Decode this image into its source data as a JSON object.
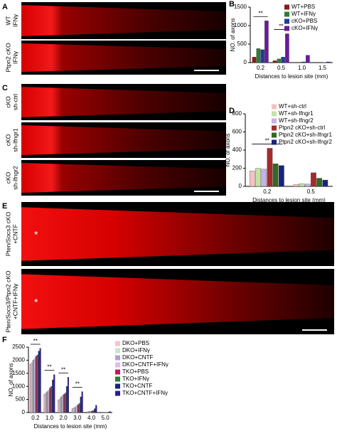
{
  "panels": {
    "A": {
      "label": "A",
      "rows": [
        {
          "genotype": "WT",
          "treatment": "IFNγ"
        },
        {
          "genotype": "Ptpn2 cKO",
          "treatment": "IFNγ"
        }
      ]
    },
    "C": {
      "label": "C",
      "rows": [
        {
          "genotype": "cKO",
          "treatment": "sh-ctrl"
        },
        {
          "genotype": "cKO",
          "treatment": "sh-Ifngr1"
        },
        {
          "genotype": "cKO",
          "treatment": "sh-Ifngr2"
        }
      ]
    },
    "E": {
      "label": "E",
      "marker": "*",
      "rows": [
        {
          "genotype": "Pten/Socs3 cKO",
          "treatment": "+CNTF"
        },
        {
          "genotype": "Pten/Socs3/Ptpn2 cKO",
          "treatment": "+CNTF+IFNγ"
        }
      ]
    }
  },
  "chart_data": [
    {
      "type": "bar",
      "panel_label": "B",
      "x_label": "Distances to lesion site (mm)",
      "y_label": "NO. of axons",
      "categories": [
        "0.2",
        "0.5",
        "1.0",
        "1.5"
      ],
      "ylim": [
        0,
        1500
      ],
      "yticks": [
        0,
        500,
        1000,
        1500
      ],
      "legend": "upper right",
      "series": [
        {
          "name": "WT+PBS",
          "color": "#8b1a1a",
          "values": [
            150,
            50,
            0,
            0
          ]
        },
        {
          "name": "WT+IFNγ",
          "color": "#2e7d32",
          "values": [
            380,
            100,
            10,
            0
          ]
        },
        {
          "name": "cKO+PBS",
          "color": "#1f3c99",
          "values": [
            350,
            150,
            20,
            5
          ]
        },
        {
          "name": "cKO+IFNγ",
          "color": "#6a1b9a",
          "values": [
            1130,
            780,
            200,
            20
          ]
        }
      ],
      "annotations": [
        {
          "text": "**",
          "category": "0.2"
        },
        {
          "text": "**",
          "category": "0.5"
        }
      ]
    },
    {
      "type": "bar",
      "panel_label": "D",
      "x_label": "Distances to lesion site (mm)",
      "y_label": "NO. of axons",
      "categories": [
        "0.2",
        "0.5"
      ],
      "ylim": [
        0,
        800
      ],
      "yticks": [
        0,
        200,
        400,
        600,
        800
      ],
      "legend": "upper right",
      "series": [
        {
          "name": "WT+sh-ctrl",
          "color": "#f4c2c2",
          "values": [
            170,
            20
          ]
        },
        {
          "name": "WT+sh-Ifngr1",
          "color": "#c5e1a5",
          "values": [
            200,
            30
          ]
        },
        {
          "name": "WT+sh-Ifngr2",
          "color": "#c5b3e6",
          "values": [
            190,
            25
          ]
        },
        {
          "name": "Ptpn2 cKO+sh-ctrl",
          "color": "#a52a2a",
          "values": [
            420,
            150
          ]
        },
        {
          "name": "Ptpn2 cKO+sh-Ifngr1",
          "color": "#33691e",
          "values": [
            250,
            90
          ]
        },
        {
          "name": "Ptpn2 cKO+sh-Ifngr2",
          "color": "#1a237e",
          "values": [
            230,
            70
          ]
        }
      ],
      "annotations": [
        {
          "text": "**",
          "category": "0.2"
        }
      ]
    },
    {
      "type": "bar",
      "panel_label": "F",
      "x_label": "Distances to lesion site (mm)",
      "y_label": "NO. of axons",
      "categories": [
        "0.2",
        "1.0",
        "2.0",
        "3.0",
        "4.0",
        "5.0"
      ],
      "ylim": [
        0,
        2500
      ],
      "yticks": [
        0,
        500,
        1000,
        1500,
        2000,
        2500
      ],
      "legend": "right",
      "series": [
        {
          "name": "DKO+PBS",
          "color": "#f2c4d6",
          "values": [
            1850,
            700,
            480,
            150,
            20,
            0
          ]
        },
        {
          "name": "DKO+IFNγ",
          "color": "#c8e6c9",
          "values": [
            1900,
            750,
            520,
            180,
            30,
            0
          ]
        },
        {
          "name": "DKO+CNTF",
          "color": "#b39ddb",
          "values": [
            2000,
            800,
            600,
            200,
            40,
            5
          ]
        },
        {
          "name": "DKO+CNTF+IFNγ",
          "color": "#e1bee7",
          "values": [
            2050,
            850,
            650,
            250,
            50,
            5
          ]
        },
        {
          "name": "TKO+PBS",
          "color": "#c2185b",
          "values": [
            2150,
            950,
            700,
            300,
            60,
            10
          ]
        },
        {
          "name": "TKO+IFNγ",
          "color": "#2e7d32",
          "values": [
            2200,
            1000,
            750,
            350,
            80,
            10
          ]
        },
        {
          "name": "TKO+CNTF",
          "color": "#1a237e",
          "values": [
            2350,
            1250,
            1000,
            600,
            150,
            20
          ]
        },
        {
          "name": "TKO+CNTF+IFNγ",
          "color": "#311b92",
          "values": [
            2450,
            1450,
            1350,
            800,
            280,
            40
          ]
        }
      ],
      "annotations": [
        {
          "text": "**",
          "category": "0.2"
        },
        {
          "text": "**",
          "category": "1.0"
        },
        {
          "text": "**",
          "category": "2.0"
        },
        {
          "text": "**",
          "category": "3.0"
        }
      ]
    }
  ]
}
